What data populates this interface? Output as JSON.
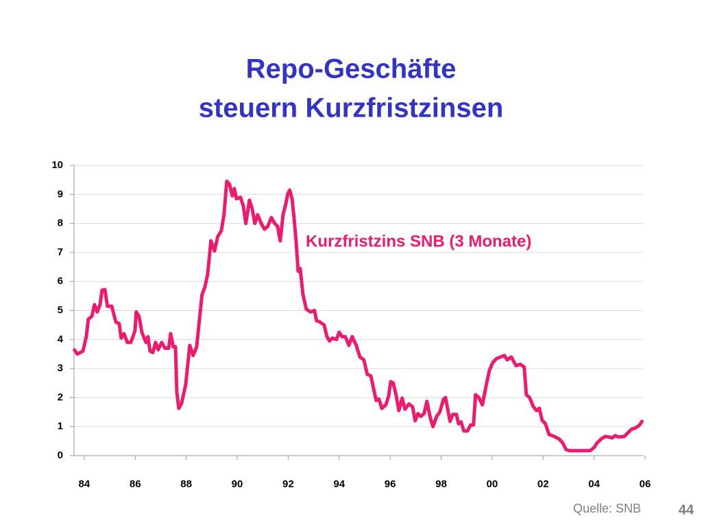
{
  "chart_data": {
    "type": "line",
    "title": "Repo-Geschäfte",
    "subtitle": "steuern Kurzfristzinsen",
    "source": "Quelle: SNB",
    "page_number": "44",
    "x": [
      1983.62,
      1983.73,
      1983.95,
      1984.08,
      1984.16,
      1984.3,
      1984.4,
      1984.51,
      1984.62,
      1984.7,
      1984.81,
      1984.91,
      1985.08,
      1985.24,
      1985.37,
      1985.45,
      1985.56,
      1985.69,
      1985.83,
      1985.99,
      1986.04,
      1986.15,
      1986.26,
      1986.42,
      1986.5,
      1986.58,
      1986.69,
      1986.8,
      1986.9,
      1987.04,
      1987.17,
      1987.31,
      1987.39,
      1987.49,
      1987.58,
      1987.63,
      1987.71,
      1987.82,
      1987.98,
      1988.06,
      1988.14,
      1988.27,
      1988.41,
      1988.52,
      1988.62,
      1988.73,
      1988.84,
      1988.97,
      1989.11,
      1989.24,
      1989.38,
      1989.48,
      1989.59,
      1989.7,
      1989.81,
      1989.89,
      1989.97,
      1990.13,
      1990.24,
      1990.34,
      1990.48,
      1990.59,
      1990.69,
      1990.8,
      1990.94,
      1991.07,
      1991.2,
      1991.34,
      1991.47,
      1991.58,
      1991.69,
      1991.8,
      1991.9,
      1991.98,
      1992.06,
      1992.15,
      1992.23,
      1992.31,
      1992.39,
      1992.47,
      1992.58,
      1992.71,
      1992.87,
      1993.03,
      1993.11,
      1993.25,
      1993.41,
      1993.52,
      1993.62,
      1993.73,
      1993.89,
      1994.0,
      1994.11,
      1994.24,
      1994.38,
      1994.51,
      1994.67,
      1994.81,
      1994.97,
      1995.1,
      1995.24,
      1995.34,
      1995.45,
      1995.56,
      1995.67,
      1995.83,
      1995.94,
      1996.02,
      1996.12,
      1996.23,
      1996.34,
      1996.47,
      1996.58,
      1996.74,
      1996.88,
      1996.98,
      1997.09,
      1997.2,
      1997.33,
      1997.44,
      1997.58,
      1997.68,
      1997.82,
      1997.95,
      1998.09,
      1998.17,
      1998.25,
      1998.35,
      1998.46,
      1998.6,
      1998.68,
      1998.78,
      1998.89,
      1999.03,
      1999.16,
      1999.27,
      1999.35,
      1999.48,
      1999.62,
      1999.75,
      1999.89,
      2000.02,
      2000.18,
      2000.34,
      2000.48,
      2000.59,
      2000.75,
      2000.94,
      2001.1,
      2001.26,
      2001.34,
      2001.47,
      2001.61,
      2001.74,
      2001.85,
      2001.96,
      2002.09,
      2002.23,
      2002.36,
      2002.49,
      2002.63,
      2002.76,
      2002.9,
      2003.03,
      2003.84,
      2004.0,
      2004.11,
      2004.27,
      2004.43,
      2004.59,
      2004.7,
      2004.83,
      2004.97,
      2005.18,
      2005.34,
      2005.45,
      2005.61,
      2005.77,
      2005.88
    ],
    "series": [
      {
        "name": "Kurzfristzins SNB (3 Monate)",
        "color": "#ee1a6e",
        "values": [
          3.64,
          3.5,
          3.6,
          4.1,
          4.7,
          4.8,
          5.2,
          4.95,
          5.2,
          5.7,
          5.72,
          5.15,
          5.15,
          4.6,
          4.55,
          4.05,
          4.2,
          3.9,
          3.9,
          4.3,
          4.95,
          4.8,
          4.25,
          3.9,
          4.1,
          3.6,
          3.55,
          3.9,
          3.65,
          3.9,
          3.7,
          3.7,
          4.2,
          3.75,
          3.75,
          2.2,
          1.63,
          1.8,
          2.45,
          3.15,
          3.8,
          3.45,
          3.75,
          4.7,
          5.55,
          5.8,
          6.25,
          7.4,
          7.05,
          7.55,
          7.75,
          8.3,
          9.45,
          9.35,
          8.95,
          9.2,
          8.85,
          8.9,
          8.6,
          8.0,
          8.8,
          8.5,
          8.0,
          8.3,
          8.0,
          7.8,
          7.9,
          8.2,
          8.0,
          7.9,
          7.4,
          8.3,
          8.65,
          9.0,
          9.15,
          8.85,
          8.2,
          7.4,
          6.35,
          6.45,
          5.55,
          5.05,
          4.95,
          5.0,
          4.65,
          4.6,
          4.5,
          4.1,
          3.95,
          4.05,
          4.0,
          4.25,
          4.1,
          4.1,
          3.8,
          4.1,
          3.8,
          3.4,
          3.3,
          2.8,
          2.75,
          2.35,
          1.9,
          1.95,
          1.63,
          1.75,
          2.05,
          2.55,
          2.5,
          2.1,
          1.55,
          1.98,
          1.6,
          1.78,
          1.68,
          1.2,
          1.45,
          1.35,
          1.45,
          1.87,
          1.28,
          1.0,
          1.35,
          1.5,
          1.94,
          2.0,
          1.63,
          1.18,
          1.42,
          1.42,
          1.1,
          1.16,
          0.85,
          0.85,
          1.06,
          1.06,
          2.1,
          2.0,
          1.75,
          2.35,
          2.93,
          3.2,
          3.35,
          3.4,
          3.45,
          3.3,
          3.4,
          3.1,
          3.15,
          3.05,
          2.1,
          2.0,
          1.7,
          1.55,
          1.63,
          1.22,
          1.1,
          0.73,
          0.69,
          0.64,
          0.57,
          0.45,
          0.21,
          0.17,
          0.17,
          0.28,
          0.43,
          0.57,
          0.66,
          0.64,
          0.61,
          0.69,
          0.64,
          0.66,
          0.8,
          0.9,
          0.95,
          1.04,
          1.18
        ]
      }
    ],
    "xlim": [
      1983.6,
      2006.0
    ],
    "xticks": [
      {
        "value": 1984,
        "label": "84"
      },
      {
        "value": 1986,
        "label": "86"
      },
      {
        "value": 1988,
        "label": "88"
      },
      {
        "value": 1990,
        "label": "90"
      },
      {
        "value": 1992,
        "label": "92"
      },
      {
        "value": 1994,
        "label": "94"
      },
      {
        "value": 1996,
        "label": "96"
      },
      {
        "value": 1998,
        "label": "98"
      },
      {
        "value": 2000,
        "label": "00"
      },
      {
        "value": 2002,
        "label": "02"
      },
      {
        "value": 2004,
        "label": "04"
      },
      {
        "value": 2006,
        "label": "06"
      }
    ],
    "ylim": [
      0,
      10
    ],
    "yticks": [
      0,
      1,
      2,
      3,
      4,
      5,
      6,
      7,
      8,
      9,
      10
    ],
    "grid": true
  }
}
